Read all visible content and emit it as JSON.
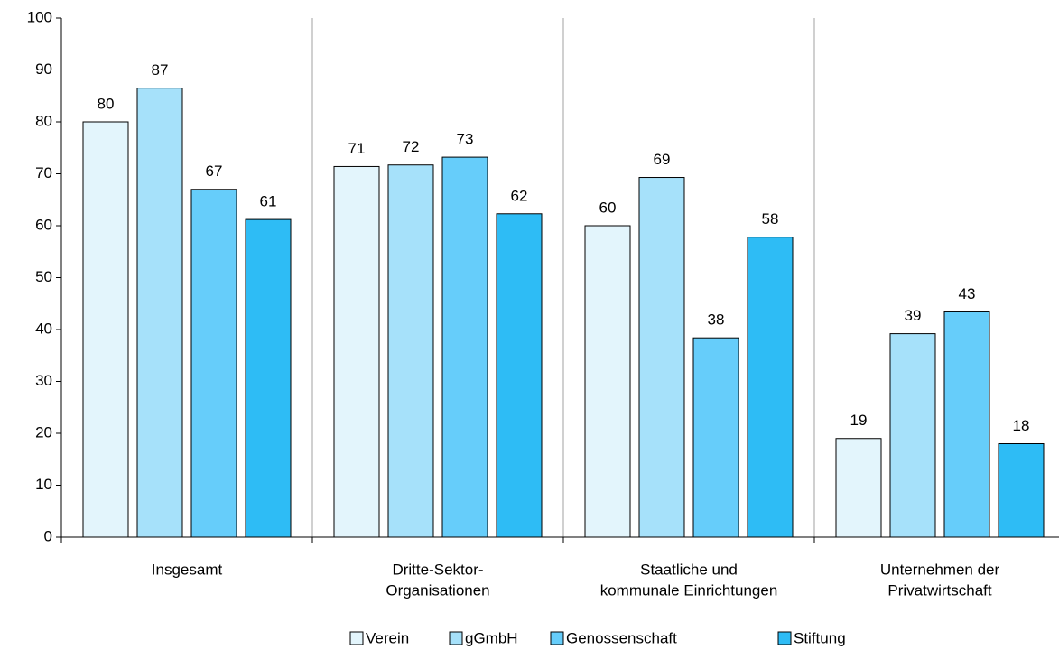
{
  "chart_data": {
    "type": "bar",
    "categories": [
      [
        "Insgesamt"
      ],
      [
        "Dritte-Sektor-",
        "Organisationen"
      ],
      [
        "Staatliche und",
        "kommunale Einrichtungen"
      ],
      [
        "Unternehmen der",
        "Privatwirtschaft"
      ]
    ],
    "series": [
      {
        "name": "Verein",
        "color": "#e3f5fc",
        "values": [
          80,
          71.4,
          60,
          19
        ],
        "value_labels": [
          "80",
          "71",
          "60",
          "19"
        ]
      },
      {
        "name": "gGmbH",
        "color": "#a6e1fa",
        "values": [
          86.5,
          71.7,
          69.3,
          39.2
        ],
        "value_labels": [
          "87",
          "72",
          "69",
          "39"
        ]
      },
      {
        "name": "Genossenschaft",
        "color": "#66cdfa",
        "values": [
          67,
          73.2,
          38.4,
          43.4
        ],
        "value_labels": [
          "67",
          "73",
          "38",
          "43"
        ]
      },
      {
        "name": "Stiftung",
        "color": "#2ebcf5",
        "values": [
          61.2,
          62.3,
          57.8,
          18
        ],
        "value_labels": [
          "61",
          "62",
          "58",
          "18"
        ]
      }
    ],
    "ylim": [
      0,
      100
    ],
    "yticks": [
      0,
      10,
      20,
      30,
      40,
      50,
      60,
      70,
      80,
      90,
      100
    ],
    "legend": "bottom"
  }
}
